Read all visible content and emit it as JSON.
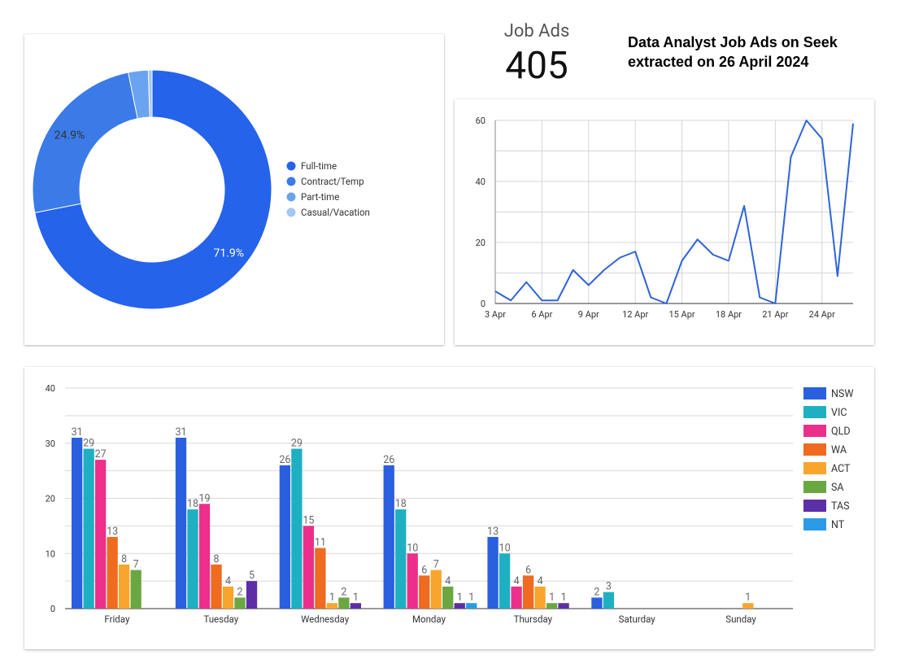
{
  "title": "Data Analyst Job Ads on Seek extracted on 26 April 2024",
  "scorecard": {
    "label": "Job Ads",
    "value": "405"
  },
  "colors": {
    "donut": [
      "#2563eb",
      "#3b7be8",
      "#6aa3ef",
      "#a3c6f5"
    ],
    "line": "#2f63d8",
    "bars": [
      "#2a5fe0",
      "#1eb0c2",
      "#ec2f8a",
      "#f06a1f",
      "#f7a52c",
      "#6aa742",
      "#5c2fa8",
      "#2b9be8"
    ]
  },
  "chart_data": [
    {
      "type": "pie",
      "donut": true,
      "slices": [
        {
          "label": "Full-time",
          "value": 71.9,
          "shown_label": "71.9%"
        },
        {
          "label": "Contract/Temp",
          "value": 24.9,
          "shown_label": "24.9%"
        },
        {
          "label": "Part-time",
          "value": 2.7,
          "shown_label": ""
        },
        {
          "label": "Casual/Vacation",
          "value": 0.5,
          "shown_label": ""
        }
      ],
      "legend": "right"
    },
    {
      "type": "line",
      "x": [
        "3 Apr",
        "4 Apr",
        "5 Apr",
        "6 Apr",
        "7 Apr",
        "8 Apr",
        "9 Apr",
        "10 Apr",
        "11 Apr",
        "12 Apr",
        "13 Apr",
        "14 Apr",
        "15 Apr",
        "16 Apr",
        "17 Apr",
        "18 Apr",
        "19 Apr",
        "20 Apr",
        "21 Apr",
        "22 Apr",
        "23 Apr",
        "24 Apr",
        "25 Apr",
        "26 Apr"
      ],
      "values": [
        4,
        1,
        7,
        1,
        1,
        11,
        6,
        11,
        15,
        17,
        2,
        0,
        14,
        21,
        16,
        14,
        32,
        2,
        0,
        48,
        60,
        54,
        9,
        59
      ],
      "xticks": [
        "3 Apr",
        "6 Apr",
        "9 Apr",
        "12 Apr",
        "15 Apr",
        "18 Apr",
        "21 Apr",
        "24 Apr"
      ],
      "yticks": [
        0,
        20,
        40,
        60
      ],
      "ylim": [
        0,
        60
      ],
      "grid": true
    },
    {
      "type": "bar",
      "categories": [
        "Friday",
        "Tuesday",
        "Wednesday",
        "Monday",
        "Thursday",
        "Saturday",
        "Sunday"
      ],
      "series": [
        {
          "name": "NSW",
          "values": [
            31,
            31,
            26,
            26,
            13,
            2,
            0
          ]
        },
        {
          "name": "VIC",
          "values": [
            29,
            18,
            29,
            18,
            10,
            3,
            0
          ]
        },
        {
          "name": "QLD",
          "values": [
            27,
            19,
            15,
            10,
            4,
            0,
            0
          ]
        },
        {
          "name": "WA",
          "values": [
            13,
            8,
            11,
            6,
            6,
            0,
            0
          ]
        },
        {
          "name": "ACT",
          "values": [
            8,
            4,
            1,
            7,
            4,
            0,
            1
          ]
        },
        {
          "name": "SA",
          "values": [
            7,
            2,
            2,
            4,
            1,
            0,
            0
          ]
        },
        {
          "name": "TAS",
          "values": [
            0,
            5,
            1,
            1,
            1,
            0,
            0
          ]
        },
        {
          "name": "NT",
          "values": [
            0,
            0,
            0,
            1,
            0,
            0,
            0
          ]
        }
      ],
      "yticks": [
        0,
        10,
        20,
        30,
        40
      ],
      "ylim": [
        0,
        40
      ],
      "legend": "right",
      "grid": true
    }
  ]
}
